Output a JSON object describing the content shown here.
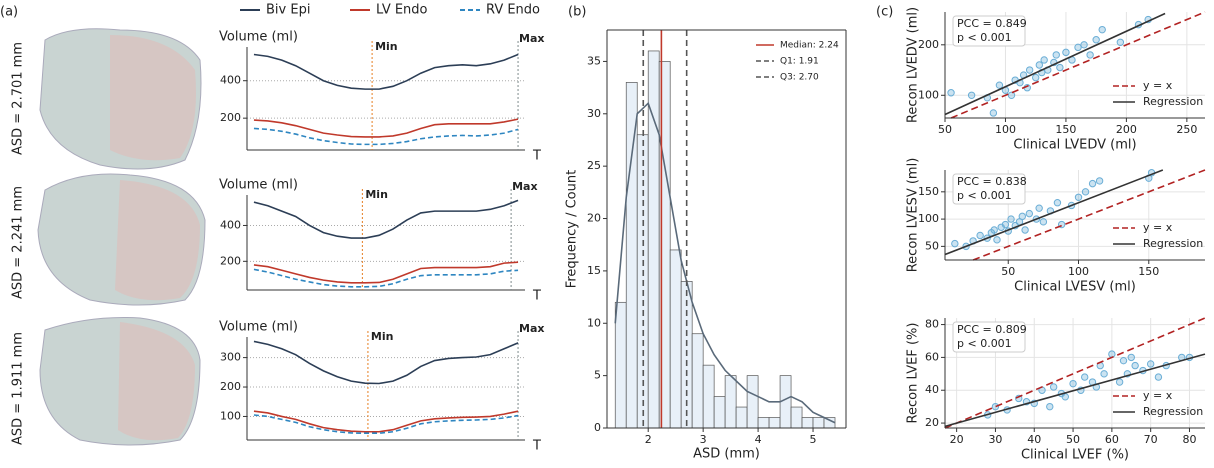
{
  "chart_data": [
    {
      "type": "line",
      "panel_label": "(a)",
      "side_label": "ASD = 2.701 mm",
      "ylabel": "Volume (ml)",
      "xlabel": "T",
      "legend": "top",
      "x": [
        0,
        1,
        2,
        3,
        4,
        5,
        6,
        7,
        8,
        9,
        10,
        11,
        12,
        13,
        14,
        15,
        16,
        17,
        18,
        19
      ],
      "xlim": [
        -0.5,
        19.5
      ],
      "ylim": [
        30,
        580
      ],
      "yticks": [
        200,
        400
      ],
      "min_label": "Min",
      "min_x": 8.5,
      "max_label": "Max",
      "max_x": 19,
      "series": [
        {
          "name": "Biv Epi",
          "color": "#2c3e56",
          "dash": false,
          "values": [
            540,
            530,
            510,
            480,
            440,
            400,
            375,
            360,
            355,
            355,
            370,
            400,
            440,
            470,
            480,
            485,
            480,
            490,
            510,
            540
          ]
        },
        {
          "name": "LV Endo",
          "color": "#c0392b",
          "dash": false,
          "values": [
            190,
            185,
            175,
            160,
            140,
            120,
            110,
            102,
            100,
            100,
            105,
            120,
            145,
            165,
            170,
            170,
            170,
            170,
            180,
            195
          ]
        },
        {
          "name": "RV Endo",
          "color": "#2e86c1",
          "dash": true,
          "values": [
            145,
            140,
            130,
            115,
            95,
            80,
            70,
            62,
            60,
            60,
            65,
            75,
            90,
            100,
            105,
            108,
            105,
            110,
            120,
            140
          ]
        }
      ]
    },
    {
      "type": "line",
      "side_label": "ASD = 2.241 mm",
      "ylabel": "Volume (ml)",
      "xlabel": "T",
      "x": [
        0,
        1,
        2,
        3,
        4,
        5,
        6,
        7,
        8,
        9,
        10,
        11,
        12,
        13,
        14,
        15,
        16,
        17,
        18,
        19
      ],
      "xlim": [
        -0.5,
        19.5
      ],
      "ylim": [
        40,
        570
      ],
      "yticks": [
        200,
        400
      ],
      "min_label": "Min",
      "min_x": 7.8,
      "max_label": "Max",
      "max_x": 18.5,
      "series": [
        {
          "name": "Biv Epi",
          "color": "#2c3e56",
          "dash": false,
          "values": [
            530,
            510,
            480,
            450,
            400,
            360,
            340,
            330,
            330,
            345,
            380,
            430,
            470,
            480,
            480,
            480,
            480,
            490,
            510,
            540
          ]
        },
        {
          "name": "LV Endo",
          "color": "#c0392b",
          "dash": false,
          "values": [
            180,
            170,
            150,
            130,
            110,
            95,
            85,
            80,
            80,
            82,
            100,
            130,
            160,
            165,
            165,
            165,
            165,
            170,
            190,
            195
          ]
        },
        {
          "name": "RV Endo",
          "color": "#2e86c1",
          "dash": true,
          "values": [
            155,
            140,
            120,
            100,
            85,
            70,
            62,
            58,
            58,
            60,
            75,
            100,
            120,
            125,
            125,
            125,
            125,
            130,
            145,
            150
          ]
        }
      ]
    },
    {
      "type": "line",
      "side_label": "ASD = 1.911 mm",
      "ylabel": "Volume (ml)",
      "xlabel": "T",
      "x": [
        0,
        1,
        2,
        3,
        4,
        5,
        6,
        7,
        8,
        9,
        10,
        11,
        12,
        13,
        14,
        15,
        16,
        17,
        18,
        19
      ],
      "xlim": [
        -0.5,
        19.5
      ],
      "ylim": [
        20,
        370
      ],
      "yticks": [
        100,
        200,
        300
      ],
      "min_label": "Min",
      "min_x": 8.2,
      "max_label": "Max",
      "max_x": 19,
      "series": [
        {
          "name": "Biv Epi",
          "color": "#2c3e56",
          "dash": false,
          "values": [
            355,
            345,
            330,
            310,
            280,
            255,
            235,
            220,
            213,
            212,
            220,
            240,
            270,
            290,
            297,
            300,
            302,
            310,
            330,
            350
          ]
        },
        {
          "name": "LV Endo",
          "color": "#c0392b",
          "dash": false,
          "values": [
            118,
            112,
            100,
            90,
            75,
            62,
            55,
            50,
            48,
            48,
            55,
            70,
            85,
            92,
            95,
            97,
            98,
            100,
            108,
            118
          ]
        },
        {
          "name": "RV Endo",
          "color": "#2e86c1",
          "dash": true,
          "values": [
            105,
            100,
            90,
            80,
            65,
            55,
            48,
            44,
            43,
            43,
            48,
            60,
            75,
            82,
            85,
            87,
            88,
            90,
            95,
            103
          ]
        }
      ]
    },
    {
      "type": "histogram",
      "panel_label": "(b)",
      "xlabel": "ASD (mm)",
      "ylabel": "Frequency / Count",
      "legend": "upper right",
      "bins": [
        1.4,
        1.6,
        1.8,
        2.0,
        2.2,
        2.4,
        2.6,
        2.8,
        3.0,
        3.2,
        3.4,
        3.6,
        3.8,
        4.0,
        4.2,
        4.4,
        4.6,
        4.8,
        5.0,
        5.2,
        5.4
      ],
      "counts": [
        12,
        33,
        28,
        36,
        35,
        17,
        14,
        9,
        6,
        3,
        5,
        2,
        5,
        1,
        1,
        5,
        2,
        1,
        1,
        1
      ],
      "color": "#e8f0f8",
      "xlim": [
        1.25,
        5.6
      ],
      "xticks": [
        2,
        3,
        4,
        5
      ],
      "ylim": [
        0,
        38
      ],
      "yticks": [
        0,
        5,
        10,
        15,
        20,
        25,
        30,
        35
      ],
      "kde": {
        "color": "#5a6a7a",
        "x": [
          1.4,
          1.6,
          1.8,
          2.0,
          2.2,
          2.4,
          2.6,
          2.8,
          3.0,
          3.2,
          3.4,
          3.6,
          3.8,
          4.0,
          4.2,
          4.4,
          4.6,
          4.8,
          5.0,
          5.2,
          5.4
        ],
        "y": [
          10,
          22,
          30,
          31,
          28,
          22,
          16,
          12,
          9,
          7,
          5.5,
          4.5,
          3.5,
          3,
          2.5,
          2.5,
          3,
          2.5,
          1.5,
          1,
          0.5
        ]
      },
      "markers": [
        {
          "name": "Median: 2.24",
          "value": 2.24,
          "color": "#c0392b",
          "dash": false
        },
        {
          "name": "Q1: 1.91",
          "value": 1.91,
          "color": "#555555",
          "dash": true
        },
        {
          "name": "Q3: 2.70",
          "value": 2.7,
          "color": "#555555",
          "dash": true
        }
      ]
    },
    {
      "type": "scatter",
      "panel_label": "(c)",
      "xlabel": "Clinical LVEDV (ml)",
      "ylabel": "Recon LVEDV (ml)",
      "legend": "lower right",
      "grid": true,
      "annotations": [
        "PCC = 0.849",
        "p < 0.001"
      ],
      "color": "#6baed6",
      "xlim": [
        50,
        265
      ],
      "xticks": [
        50,
        100,
        150,
        200,
        250
      ],
      "ylim": [
        55,
        265
      ],
      "yticks": [
        100,
        200
      ],
      "x": [
        55,
        72,
        85,
        90,
        95,
        100,
        105,
        108,
        112,
        115,
        118,
        120,
        125,
        128,
        130,
        132,
        135,
        140,
        142,
        145,
        150,
        155,
        160,
        165,
        170,
        175,
        180,
        195,
        210,
        218
      ],
      "values": [
        105,
        100,
        95,
        65,
        120,
        110,
        100,
        130,
        125,
        140,
        115,
        150,
        135,
        160,
        145,
        170,
        150,
        165,
        180,
        155,
        185,
        170,
        195,
        200,
        180,
        210,
        230,
        205,
        240,
        250
      ],
      "lines": [
        {
          "name": "y = x",
          "color": "#b22222",
          "dash": true,
          "x": [
            55,
            265
          ],
          "y": [
            55,
            265
          ]
        },
        {
          "name": "Regression",
          "color": "#333333",
          "dash": false,
          "x": [
            50,
            232
          ],
          "y": [
            62,
            262
          ]
        }
      ]
    },
    {
      "type": "scatter",
      "xlabel": "Clinical LVESV (ml)",
      "ylabel": "Recon LVESV (ml)",
      "legend": "lower right",
      "grid": true,
      "annotations": [
        "PCC = 0.838",
        "p < 0.001"
      ],
      "color": "#6baed6",
      "xlim": [
        5,
        190
      ],
      "xticks": [
        50,
        100,
        150
      ],
      "ylim": [
        25,
        190
      ],
      "yticks": [
        50,
        100,
        150
      ],
      "x": [
        12,
        20,
        25,
        30,
        35,
        38,
        40,
        42,
        45,
        48,
        50,
        52,
        55,
        58,
        60,
        62,
        65,
        70,
        72,
        75,
        80,
        85,
        88,
        95,
        100,
        105,
        110,
        115,
        150,
        152
      ],
      "values": [
        55,
        50,
        60,
        70,
        65,
        75,
        80,
        62,
        85,
        90,
        78,
        100,
        88,
        95,
        105,
        80,
        110,
        100,
        120,
        95,
        115,
        130,
        90,
        125,
        140,
        150,
        165,
        170,
        175,
        185
      ],
      "lines": [
        {
          "name": "y = x",
          "color": "#b22222",
          "dash": true,
          "x": [
            25,
            190
          ],
          "y": [
            25,
            190
          ]
        },
        {
          "name": "Regression",
          "color": "#333333",
          "dash": false,
          "x": [
            5,
            160
          ],
          "y": [
            35,
            190
          ]
        }
      ]
    },
    {
      "type": "scatter",
      "xlabel": "Clinical LVEF (%)",
      "ylabel": "Recon LVEF (%)",
      "legend": "lower right",
      "grid": true,
      "annotations": [
        "PCC = 0.809",
        "p < 0.001"
      ],
      "color": "#6baed6",
      "xlim": [
        17,
        84
      ],
      "xticks": [
        20,
        30,
        40,
        50,
        60,
        70,
        80
      ],
      "ylim": [
        17,
        84
      ],
      "yticks": [
        20,
        40,
        60,
        80
      ],
      "x": [
        28,
        30,
        33,
        36,
        38,
        40,
        42,
        44,
        45,
        47,
        48,
        50,
        52,
        53,
        55,
        56,
        57,
        58,
        60,
        62,
        63,
        64,
        65,
        66,
        68,
        70,
        72,
        74,
        78,
        80
      ],
      "values": [
        25,
        30,
        28,
        35,
        33,
        32,
        40,
        30,
        42,
        38,
        36,
        44,
        40,
        48,
        45,
        42,
        55,
        50,
        62,
        45,
        58,
        50,
        60,
        55,
        52,
        56,
        48,
        55,
        60,
        60
      ],
      "lines": [
        {
          "name": "y = x",
          "color": "#b22222",
          "dash": true,
          "x": [
            17,
            84
          ],
          "y": [
            17,
            84
          ]
        },
        {
          "name": "Regression",
          "color": "#333333",
          "dash": false,
          "x": [
            17,
            84
          ],
          "y": [
            18,
            62
          ]
        }
      ]
    }
  ]
}
